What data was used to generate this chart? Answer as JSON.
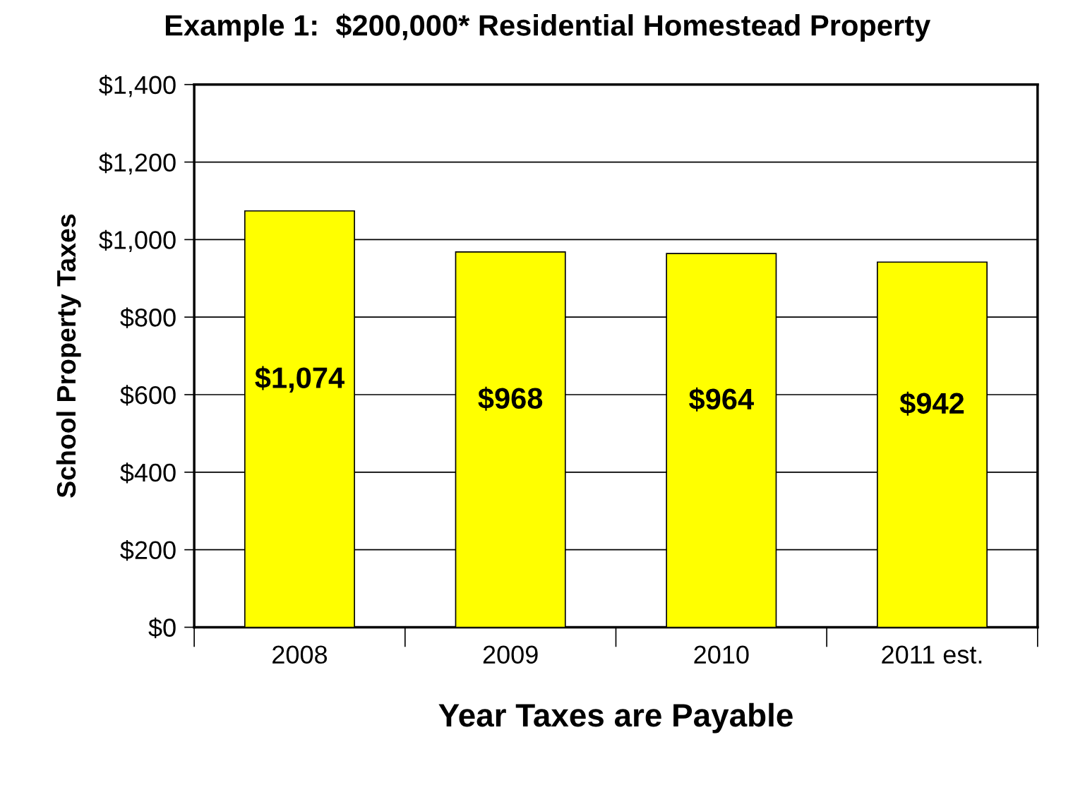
{
  "chart_data": {
    "type": "bar",
    "title": "Example 1:  $200,000* Residential Homestead Property",
    "xlabel": "Year Taxes are Payable",
    "ylabel": "School Property Taxes",
    "categories": [
      "2008",
      "2009",
      "2010",
      "2011 est."
    ],
    "values": [
      1074,
      968,
      964,
      942
    ],
    "value_labels": [
      "$1,074",
      "$968",
      "$964",
      "$942"
    ],
    "color": "#ffff00",
    "ylim": [
      0,
      1400
    ],
    "yticks": [
      {
        "value": 0,
        "label": "$0"
      },
      {
        "value": 200,
        "label": "$200"
      },
      {
        "value": 400,
        "label": "$400"
      },
      {
        "value": 600,
        "label": "$600"
      },
      {
        "value": 800,
        "label": "$800"
      },
      {
        "value": 1000,
        "label": "$1,000"
      },
      {
        "value": 1200,
        "label": "$1,200"
      },
      {
        "value": 1400,
        "label": "$1,400"
      }
    ],
    "grid": "y",
    "legend": false
  }
}
